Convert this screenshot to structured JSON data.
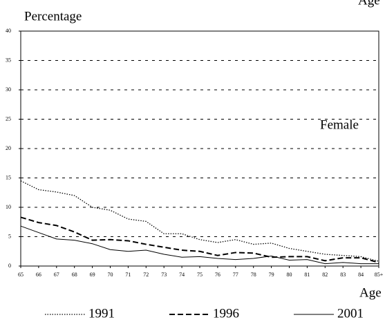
{
  "chart_data": {
    "type": "line",
    "y_label": "Percentage",
    "x_label": "Age",
    "annotations": [
      "Age",
      "Female"
    ],
    "categories": [
      "65",
      "66",
      "67",
      "68",
      "69",
      "70",
      "71",
      "72",
      "73",
      "74",
      "75",
      "76",
      "77",
      "78",
      "79",
      "80",
      "81",
      "82",
      "83",
      "84",
      "85+"
    ],
    "series": [
      {
        "name": "1991",
        "color": "#000000",
        "dash": "dotted",
        "values": [
          14.5,
          13,
          12.6,
          12,
          10,
          9.5,
          8,
          7.6,
          5.5,
          5.5,
          4.5,
          4,
          4.5,
          3.7,
          3.9,
          3,
          2.5,
          2,
          1.8,
          1.6,
          0.8
        ]
      },
      {
        "name": "1996",
        "color": "#000000",
        "dash": "dashed",
        "values": [
          8.3,
          7.4,
          6.9,
          5.8,
          4.4,
          4.5,
          4.3,
          3.7,
          3.2,
          2.7,
          2.5,
          1.8,
          2.3,
          2.2,
          1.5,
          1.6,
          1.6,
          0.9,
          1.4,
          1.4,
          0.6
        ]
      },
      {
        "name": "2001",
        "color": "#000000",
        "dash": "solid",
        "values": [
          6.8,
          5.7,
          4.6,
          4.4,
          3.8,
          2.8,
          2.5,
          2.7,
          2.0,
          1.5,
          1.6,
          1.3,
          1.1,
          1.3,
          1.7,
          1.0,
          1.1,
          0.4,
          0.6,
          0.4,
          0.4
        ]
      }
    ],
    "ylim": [
      0,
      40
    ],
    "yticks": [
      0,
      5,
      10,
      15,
      20,
      25,
      30,
      35,
      40
    ],
    "grid": true
  }
}
